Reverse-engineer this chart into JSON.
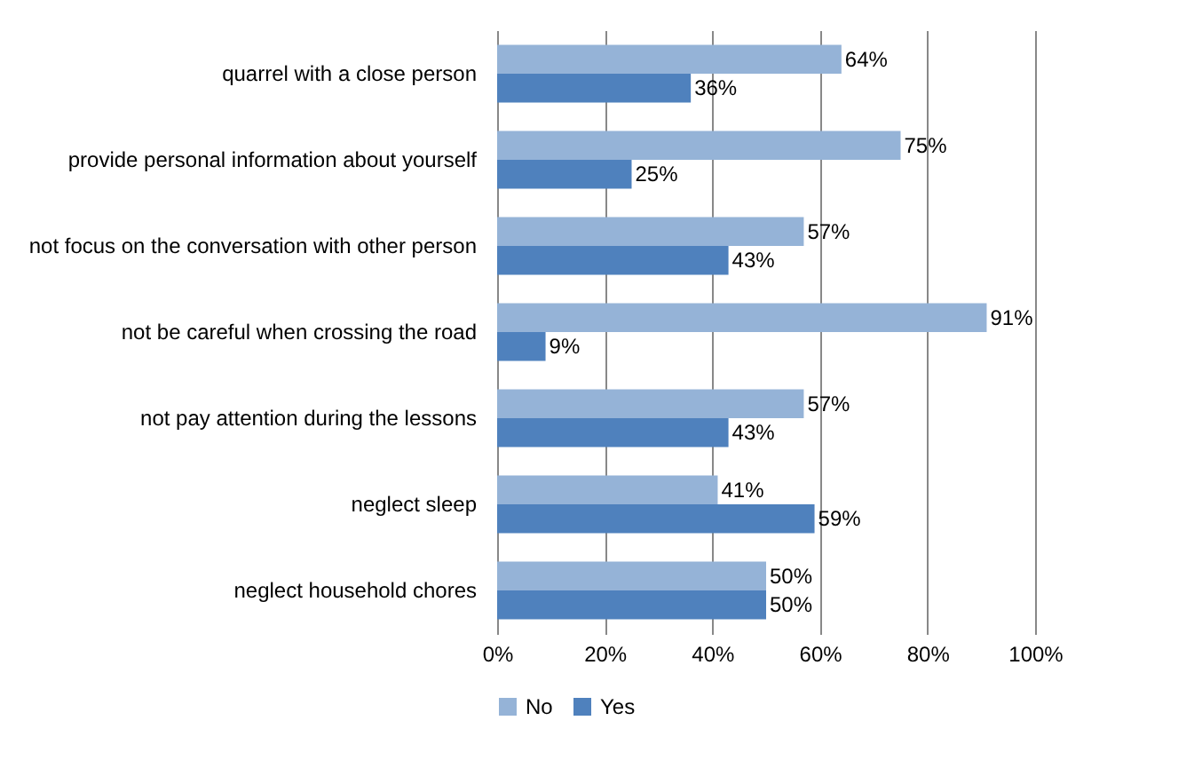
{
  "chart_data": {
    "type": "bar",
    "orientation": "horizontal",
    "categories": [
      "quarrel with a close person",
      "provide personal information about yourself",
      "not focus on the conversation with other person",
      "not be careful when crossing the road",
      "not pay attention during the lessons",
      "neglect sleep",
      "neglect household chores"
    ],
    "series": [
      {
        "name": "No",
        "color": "#95b3d7",
        "values": [
          64,
          75,
          57,
          91,
          57,
          41,
          50
        ],
        "value_labels": [
          "64%",
          "75%",
          "57%",
          "91%",
          "57%",
          "41%",
          "50%"
        ]
      },
      {
        "name": "Yes",
        "color": "#4f81bd",
        "values": [
          36,
          25,
          43,
          9,
          43,
          59,
          50
        ],
        "value_labels": [
          "36%",
          "25%",
          "43%",
          "9%",
          "43%",
          "59%",
          "50%"
        ]
      }
    ],
    "xlim": [
      0,
      100
    ],
    "xticks": [
      {
        "value": 0,
        "label": "0%"
      },
      {
        "value": 20,
        "label": "20%"
      },
      {
        "value": 40,
        "label": "40%"
      },
      {
        "value": 60,
        "label": "60%"
      },
      {
        "value": 80,
        "label": "80%"
      },
      {
        "value": 100,
        "label": "100%"
      }
    ],
    "grid": "x",
    "legend": "bottom"
  }
}
